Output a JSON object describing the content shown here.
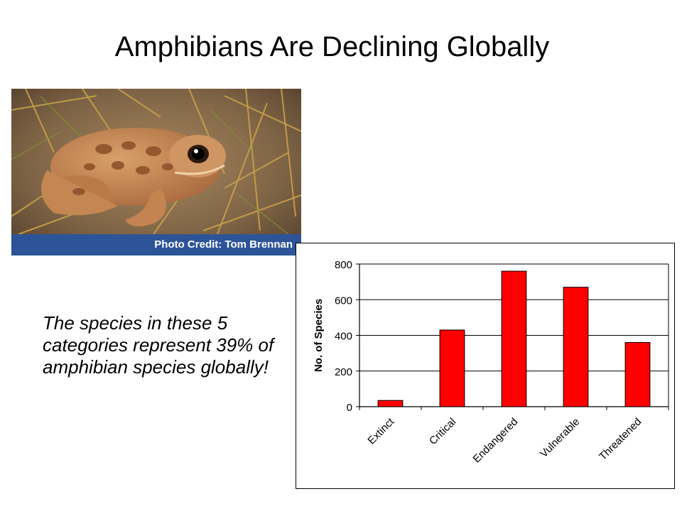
{
  "slide": {
    "title": "Amphibians Are Declining Globally",
    "caption": "The species in these 5 categories represent 39% of amphibian species globally!"
  },
  "photo": {
    "credit": "Photo Credit: Tom Brennan",
    "credit_bar_color": "#2d5497"
  },
  "chart_data": {
    "type": "bar",
    "categories": [
      "Extinct",
      "Critical",
      "Endangered",
      "Vulnerable",
      "Threatened"
    ],
    "values": [
      35,
      430,
      760,
      670,
      360
    ],
    "ylabel": "No. of Species",
    "ylim": [
      0,
      800
    ],
    "yticks": [
      0,
      200,
      400,
      600,
      800
    ],
    "grid": true,
    "legend": false,
    "bar_color": "#ff0000"
  }
}
